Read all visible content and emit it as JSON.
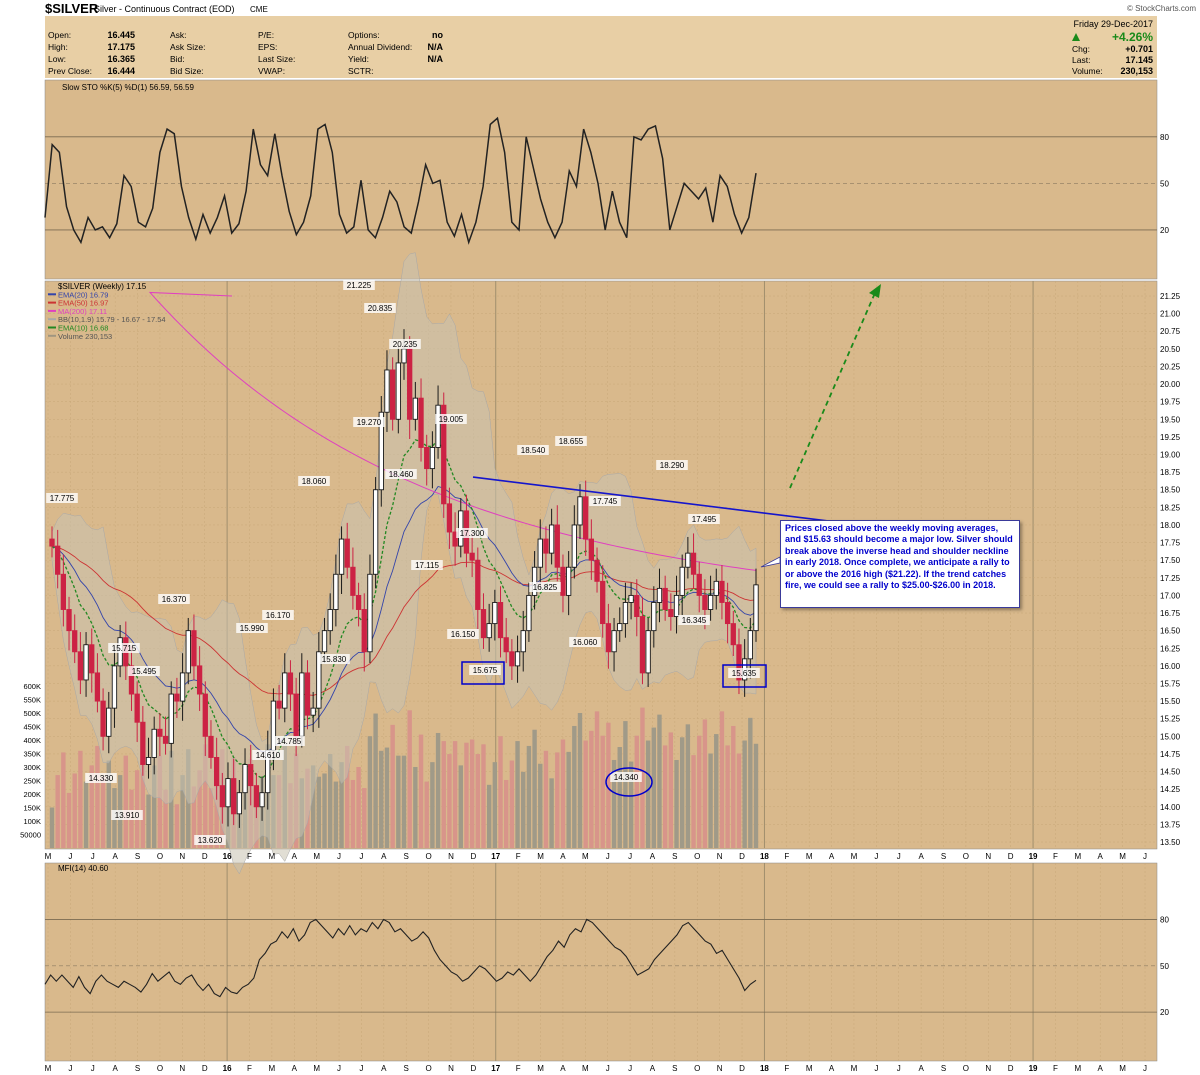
{
  "header": {
    "symbol": "$SILVER",
    "name": "Silver - Continuous Contract (EOD)",
    "exchange": "CME",
    "watermark": "© StockCharts.com",
    "date": "Friday 29-Dec-2017",
    "change_pct": "+4.26%",
    "stats_left": [
      {
        "label": "Open:",
        "value": "16.445"
      },
      {
        "label": "High:",
        "value": "17.175"
      },
      {
        "label": "Low:",
        "value": "16.365"
      },
      {
        "label": "Prev Close:",
        "value": "16.444"
      }
    ],
    "stats_mid": [
      {
        "label": "Ask:",
        "value": ""
      },
      {
        "label": "Ask Size:",
        "value": ""
      },
      {
        "label": "Bid:",
        "value": ""
      },
      {
        "label": "Bid Size:",
        "value": ""
      }
    ],
    "stats_mid2": [
      {
        "label": "P/E:",
        "value": ""
      },
      {
        "label": "EPS:",
        "value": ""
      },
      {
        "label": "Last Size:",
        "value": ""
      },
      {
        "label": "VWAP:",
        "value": ""
      }
    ],
    "stats_right": [
      {
        "label": "Options:",
        "value": "no"
      },
      {
        "label": "Annual Dividend:",
        "value": "N/A"
      },
      {
        "label": "Yield:",
        "value": "N/A"
      },
      {
        "label": "SCTR:",
        "value": ""
      }
    ],
    "stats_far": [
      {
        "label": "Chg:",
        "value": "+0.701"
      },
      {
        "label": "Last:",
        "value": "17.145"
      },
      {
        "label": "Volume:",
        "value": "230,153"
      }
    ]
  },
  "colors": {
    "panel_bg": "#d9b98c",
    "header_bg": "#e8cfa5",
    "up": "#1a1a1a",
    "down": "#cc2244",
    "ema20": "#3344aa",
    "ema50": "#cc3333",
    "ma200": "#e040c0",
    "ema10": "#228822",
    "bb_fill": "#c8c3b0",
    "neckline": "#1515cc",
    "arrow": "#1a8a1a",
    "box": "#0000cc"
  },
  "note": {
    "text": "Prices closed above the weekly moving averages, and $15.63 should become a major low. Silver should break above the inverse head and shoulder neckline in early 2018. Once complete, we anticipate a rally to or above the 2016 high ($21.22). If the trend catches fire, we could see a rally to $25.00-$26.00 in 2018."
  },
  "chart_data": [
    {
      "type": "line",
      "title": "Slow STO %K(5) %D(1) 56.59, 56.59",
      "ylim": [
        0,
        100
      ],
      "yticks": [
        20,
        50,
        80
      ],
      "series": [
        {
          "name": "Slow STO %K(5) %D(1) 56.59, 56.59",
          "values": [
            28,
            75,
            70,
            35,
            20,
            12,
            28,
            20,
            22,
            15,
            24,
            55,
            48,
            25,
            22,
            34,
            70,
            85,
            82,
            48,
            28,
            14,
            30,
            18,
            28,
            42,
            18,
            24,
            45,
            85,
            62,
            55,
            82,
            55,
            32,
            17,
            25,
            42,
            85,
            88,
            70,
            30,
            18,
            22,
            52,
            20,
            15,
            28,
            45,
            38,
            22,
            18,
            38,
            62,
            50,
            52,
            25,
            16,
            30,
            12,
            25,
            48,
            88,
            92,
            70,
            25,
            20,
            80,
            60,
            40,
            25,
            15,
            25,
            58,
            48,
            85,
            70,
            50,
            20,
            45,
            25,
            15,
            80,
            78,
            85,
            87,
            66,
            20,
            35,
            50,
            45,
            40,
            47,
            25,
            55,
            48,
            30,
            18,
            28,
            56.59
          ]
        }
      ]
    },
    {
      "type": "candlestick",
      "title": "$SILVER (Weekly) 17.15",
      "x_range": [
        "2015-05",
        "2019-07"
      ],
      "xticks": [
        "M",
        "J",
        "J",
        "A",
        "S",
        "O",
        "N",
        "D",
        "16",
        "F",
        "M",
        "A",
        "M",
        "J",
        "J",
        "A",
        "S",
        "O",
        "N",
        "D",
        "17",
        "F",
        "M",
        "A",
        "M",
        "J",
        "J",
        "A",
        "S",
        "O",
        "N",
        "D",
        "18",
        "F",
        "M",
        "A",
        "M",
        "J",
        "J",
        "A",
        "S",
        "O",
        "N",
        "D",
        "19",
        "F",
        "M",
        "A",
        "M",
        "J"
      ],
      "ylim": [
        13.5,
        21.25
      ],
      "yticks": [
        "13.50",
        "13.75",
        "14.00",
        "14.25",
        "14.50",
        "14.75",
        "15.00",
        "15.25",
        "15.50",
        "15.75",
        "16.00",
        "16.25",
        "16.50",
        "16.75",
        "17.00",
        "17.25",
        "17.50",
        "17.75",
        "18.00",
        "18.25",
        "18.50",
        "18.75",
        "19.00",
        "19.25",
        "19.50",
        "19.75",
        "20.00",
        "20.25",
        "20.50",
        "20.75",
        "21.00",
        "21.25"
      ],
      "legend": [
        {
          "name": "$SILVER (Weekly) 17.15",
          "color": "#000000"
        },
        {
          "name": "EMA(20) 16.79",
          "color": "#3344aa"
        },
        {
          "name": "EMA(50) 16.97",
          "color": "#cc3333"
        },
        {
          "name": "MA(200) 17.11",
          "color": "#e040c0"
        },
        {
          "name": "BB(10,1.9) 15.79 - 16.67 - 17.54",
          "color": "#a8a8a8"
        },
        {
          "name": "EMA(10) 16.68",
          "color": "#228822"
        },
        {
          "name": "Volume 230,153",
          "color": "#a09680"
        }
      ],
      "close": [
        17.7,
        17.3,
        16.8,
        16.5,
        16.2,
        15.8,
        16.3,
        15.9,
        15.5,
        15.0,
        15.4,
        16.0,
        16.4,
        16.0,
        15.6,
        15.2,
        14.6,
        14.7,
        15.1,
        15.0,
        14.9,
        15.6,
        15.5,
        15.9,
        16.5,
        16.0,
        15.6,
        15.0,
        14.7,
        14.3,
        14.0,
        14.4,
        13.9,
        14.2,
        14.6,
        14.3,
        14.0,
        14.2,
        14.8,
        15.5,
        15.4,
        15.9,
        15.6,
        15.0,
        15.9,
        15.3,
        15.4,
        16.2,
        16.5,
        16.8,
        17.3,
        17.8,
        17.4,
        17.0,
        16.8,
        16.2,
        17.3,
        18.5,
        19.6,
        20.2,
        19.5,
        20.3,
        20.5,
        19.5,
        19.8,
        19.1,
        18.8,
        19.1,
        19.7,
        18.3,
        17.9,
        17.7,
        18.2,
        17.6,
        17.5,
        16.8,
        16.4,
        16.6,
        16.9,
        16.4,
        16.2,
        16.0,
        16.2,
        16.5,
        17.0,
        17.4,
        17.8,
        17.6,
        18.0,
        17.4,
        17.0,
        17.4,
        18.0,
        18.4,
        17.8,
        17.5,
        17.2,
        16.6,
        16.2,
        16.5,
        16.6,
        16.9,
        17.0,
        16.7,
        15.9,
        16.5,
        16.9,
        17.1,
        16.8,
        16.7,
        17.0,
        17.4,
        17.6,
        17.3,
        17.0,
        16.8,
        17.0,
        17.2,
        16.9,
        16.6,
        16.3,
        15.8,
        16.1,
        16.5,
        17.15
      ],
      "annotations": [
        "17.775",
        "15.715",
        "15.495",
        "14.330",
        "13.910",
        "16.370",
        "13.620",
        "15.990",
        "16.170",
        "14.610",
        "14.785",
        "18.060",
        "15.830",
        "21.225",
        "20.835",
        "20.235",
        "19.270",
        "18.460",
        "19.005",
        "17.115",
        "17.300",
        "16.150",
        "15.675",
        "18.540",
        "18.655",
        "16.825",
        "17.745",
        "16.060",
        "14.340",
        "18.290",
        "17.495",
        "16.345",
        "15.635"
      ],
      "neckline": [
        {
          "x": "2016-12-05",
          "y": 18.68
        },
        {
          "x": "2018-01-15",
          "y": 18.05
        }
      ]
    },
    {
      "type": "bar",
      "title": "Volume 230,153",
      "ylim": [
        0,
        600000
      ],
      "yticks": [
        "50000",
        "100K",
        "150K",
        "200K",
        "250K",
        "300K",
        "350K",
        "400K",
        "450K",
        "500K",
        "550K",
        "600K"
      ]
    },
    {
      "type": "line",
      "title": "MFI(14) 40.60",
      "ylim": [
        0,
        100
      ],
      "yticks": [
        20,
        50,
        80
      ],
      "series": [
        {
          "name": "MFI(14) 40.60",
          "values": [
            38,
            44,
            40,
            44,
            40,
            36,
            43,
            36,
            32,
            40,
            44,
            40,
            38,
            36,
            40,
            38,
            36,
            33,
            38,
            45,
            40,
            43,
            46,
            40,
            38,
            42,
            44,
            38,
            34,
            38,
            32,
            30,
            36,
            33,
            32,
            36,
            38,
            42,
            54,
            58,
            64,
            66,
            72,
            68,
            74,
            66,
            70,
            78,
            80,
            76,
            72,
            68,
            74,
            70,
            76,
            70,
            74,
            72,
            78,
            74,
            80,
            78,
            72,
            74,
            70,
            66,
            68,
            72,
            68,
            60,
            54,
            50,
            46,
            44,
            40,
            42,
            46,
            50,
            48,
            44,
            40,
            42,
            46,
            44,
            48,
            44,
            40,
            44,
            50,
            56,
            60,
            66,
            62,
            70,
            74,
            72,
            80,
            78,
            74,
            70,
            66,
            62,
            60,
            56,
            50,
            44,
            46,
            48,
            54,
            58,
            62,
            66,
            70,
            76,
            78,
            74,
            70,
            66,
            64,
            58,
            60,
            54,
            48,
            42,
            34,
            38,
            40.6
          ]
        }
      ]
    }
  ]
}
